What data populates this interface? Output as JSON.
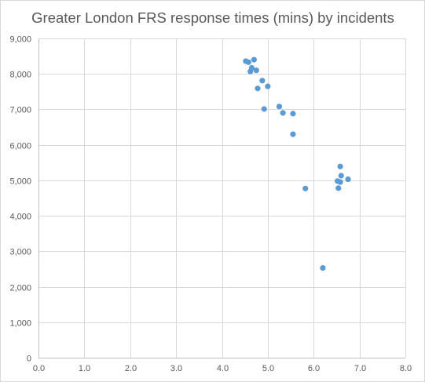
{
  "chart_data": {
    "type": "scatter",
    "title": "Greater London FRS response times (mins) by incidents",
    "xlabel": "",
    "ylabel": "",
    "xlim": [
      0,
      8
    ],
    "ylim": [
      0,
      9000
    ],
    "x_ticks": [
      "0.0",
      "1.0",
      "2.0",
      "3.0",
      "4.0",
      "5.0",
      "6.0",
      "7.0",
      "8.0"
    ],
    "y_ticks": [
      "0",
      "1,000",
      "2,000",
      "3,000",
      "4,000",
      "5,000",
      "6,000",
      "7,000",
      "8,000",
      "9,000"
    ],
    "grid": "vertical and horizontal major gridlines",
    "legend": "none",
    "series": [
      {
        "color": "#5b9bd5",
        "points": [
          {
            "x": 4.52,
            "y": 8360
          },
          {
            "x": 4.58,
            "y": 8330
          },
          {
            "x": 4.7,
            "y": 8400
          },
          {
            "x": 4.65,
            "y": 8170
          },
          {
            "x": 4.62,
            "y": 8070
          },
          {
            "x": 4.75,
            "y": 8100
          },
          {
            "x": 4.88,
            "y": 7810
          },
          {
            "x": 5.0,
            "y": 7650
          },
          {
            "x": 4.78,
            "y": 7590
          },
          {
            "x": 4.92,
            "y": 7010
          },
          {
            "x": 5.25,
            "y": 7080
          },
          {
            "x": 5.33,
            "y": 6900
          },
          {
            "x": 5.55,
            "y": 6880
          },
          {
            "x": 5.55,
            "y": 6300
          },
          {
            "x": 5.82,
            "y": 4770
          },
          {
            "x": 6.52,
            "y": 4980
          },
          {
            "x": 6.58,
            "y": 5390
          },
          {
            "x": 6.6,
            "y": 5130
          },
          {
            "x": 6.58,
            "y": 4950
          },
          {
            "x": 6.75,
            "y": 5030
          },
          {
            "x": 6.54,
            "y": 4780
          },
          {
            "x": 6.2,
            "y": 2530
          }
        ]
      }
    ]
  }
}
